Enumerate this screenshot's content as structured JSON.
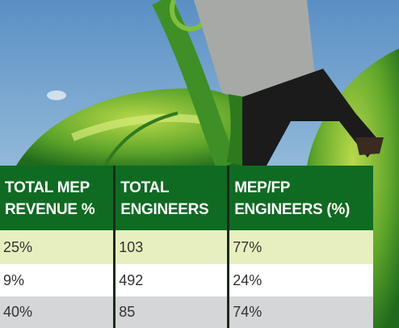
{
  "table": {
    "headers": [
      [
        "TOTAL MEP",
        "REVENUE %"
      ],
      [
        "TOTAL",
        "ENGINEERS"
      ],
      [
        "MEP/FP",
        "ENGINEERS (%)"
      ]
    ],
    "rows": [
      [
        "25%",
        "103",
        "77%"
      ],
      [
        "9%",
        "492",
        "24%"
      ],
      [
        "40%",
        "85",
        "74%"
      ]
    ]
  }
}
